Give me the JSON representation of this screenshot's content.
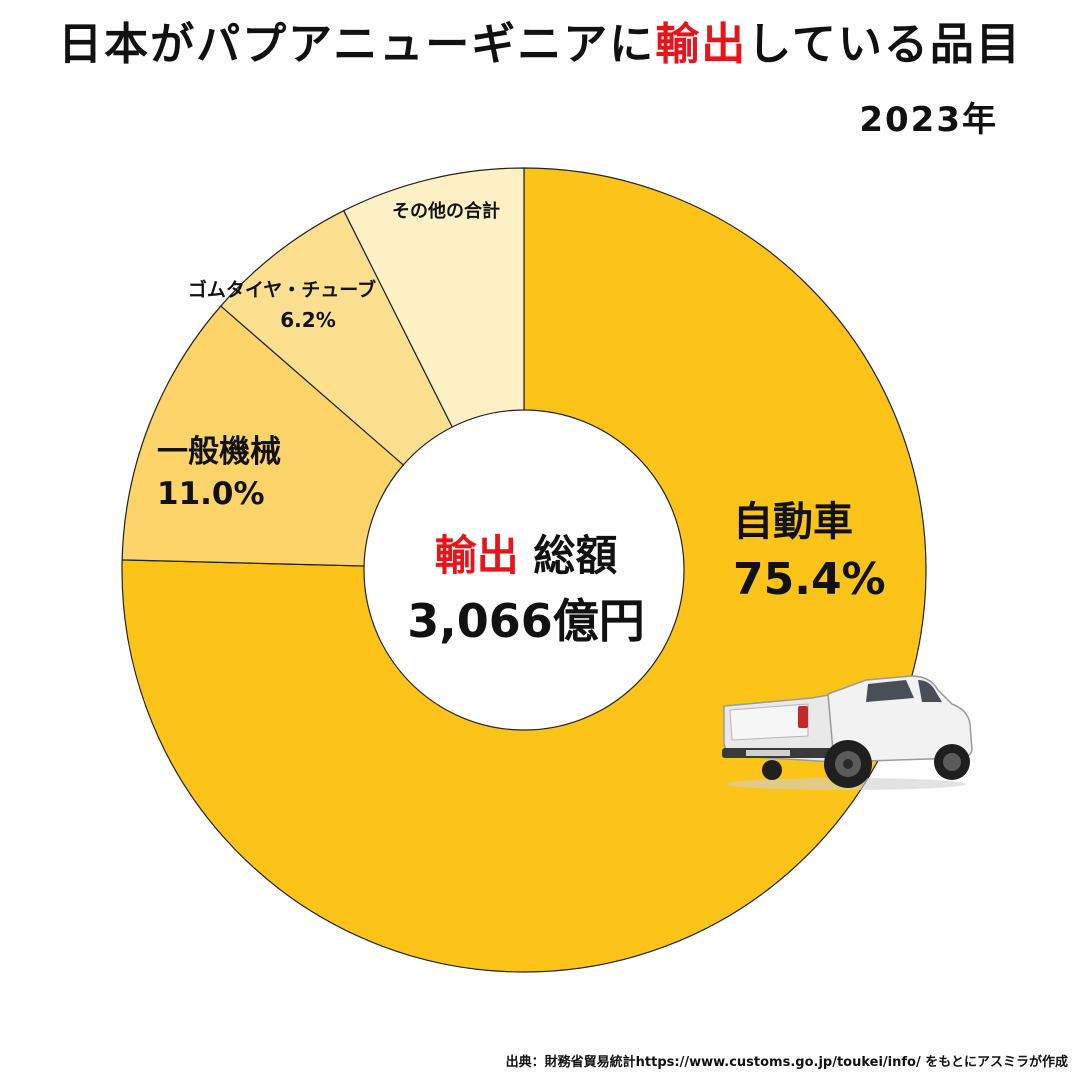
{
  "title": {
    "prefix": "日本がパプアニューギニアに",
    "highlight": "輸出",
    "suffix": "している品目"
  },
  "year": "2023年",
  "center": {
    "highlight": "輸出",
    "label": "総額",
    "total": "3,066億円"
  },
  "source": "出典：財務省貿易統計https://www.customs.go.jp/toukei/info/ をもとにアスミラが作成",
  "colors": {
    "accent": "#e8141b",
    "slice_main": "#fcc419",
    "slice_2": "#fdd46a",
    "slice_3": "#fde08f",
    "slice_4": "#fff1c6"
  },
  "chart_data": {
    "type": "pie",
    "donut": true,
    "title": "日本がパプアニューギニアに輸出している品目",
    "subtitle": "2023年",
    "unit": "%",
    "categories": [
      "自動車",
      "一般機械",
      "ゴムタイヤ・チューブ",
      "その他の合計"
    ],
    "values": [
      75.4,
      11.0,
      6.2,
      7.4
    ],
    "value_labels": [
      "75.4%",
      "11.0%",
      "6.2%",
      ""
    ],
    "colors": [
      "#fcc419",
      "#fdd46a",
      "#fde08f",
      "#fff1c6"
    ],
    "start_angle": "12 o'clock",
    "direction": "clockwise"
  }
}
